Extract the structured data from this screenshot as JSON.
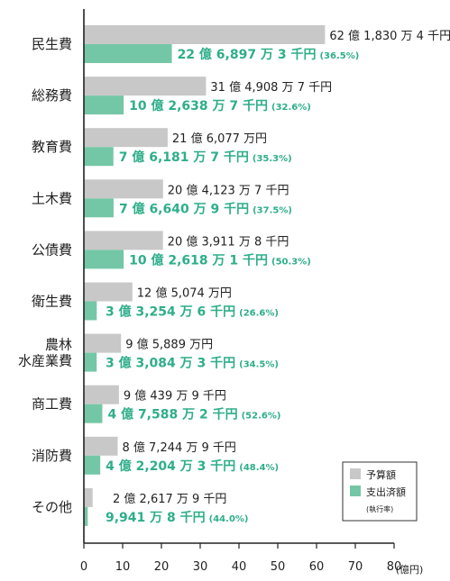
{
  "chart_data": {
    "type": "bar",
    "orientation": "horizontal",
    "x_unit": "(億円)",
    "xlim": [
      0,
      80
    ],
    "x_ticks": [
      0,
      10,
      20,
      30,
      40,
      50,
      60,
      70,
      80
    ],
    "legend": {
      "position": "bottom-right",
      "items": [
        {
          "label": "予算額",
          "color": "#c8c8c8"
        },
        {
          "label": "支出済額",
          "color": "#74c7a6",
          "note": "(執行率)"
        }
      ]
    },
    "colors": {
      "budget": "#c8c8c8",
      "spent": "#74c7a6",
      "label_accent": "#2eae8a"
    },
    "categories": [
      {
        "name": [
          "民生費"
        ],
        "budget": 62.183,
        "spent": 22.6897,
        "budget_label": "62 億 1,830 万 4 千円",
        "spent_label": "22 億 6,897 万 3 千円",
        "rate": "(36.5%)"
      },
      {
        "name": [
          "総務費"
        ],
        "budget": 31.4908,
        "spent": 10.2638,
        "budget_label": "31 億 4,908 万 7 千円",
        "spent_label": "10 億 2,638 万 7 千円",
        "rate": "(32.6%)"
      },
      {
        "name": [
          "教育費"
        ],
        "budget": 21.6077,
        "spent": 7.6181,
        "budget_label": "21 億 6,077 万円",
        "spent_label": "7 億 6,181 万 7 千円",
        "rate": "(35.3%)"
      },
      {
        "name": [
          "土木費"
        ],
        "budget": 20.4123,
        "spent": 7.664,
        "budget_label": "20 億 4,123 万 7 千円",
        "spent_label": "7 億 6,640 万 9 千円",
        "rate": "(37.5%)"
      },
      {
        "name": [
          "公債費"
        ],
        "budget": 20.3911,
        "spent": 10.2618,
        "budget_label": "20 億 3,911 万 8 千円",
        "spent_label": "10 億 2,618 万 1 千円",
        "rate": "(50.3%)"
      },
      {
        "name": [
          "衛生費"
        ],
        "budget": 12.5074,
        "spent": 3.3254,
        "budget_label": "12 億 5,074 万円",
        "spent_label": "3 億 3,254 万 6 千円",
        "rate": "(26.6%)"
      },
      {
        "name": [
          "農林",
          "水産業費"
        ],
        "budget": 9.5889,
        "spent": 3.3084,
        "budget_label": "9 億 5,889 万円",
        "spent_label": "3 億 3,084 万 3 千円",
        "rate": "(34.5%)"
      },
      {
        "name": [
          "商工費"
        ],
        "budget": 9.0439,
        "spent": 4.7588,
        "budget_label": "9 億 439 万 9 千円",
        "spent_label": "4 億 7,588 万 2 千円",
        "rate": "(52.6%)"
      },
      {
        "name": [
          "消防費"
        ],
        "budget": 8.7244,
        "spent": 4.2204,
        "budget_label": "8 億 7,244 万 9 千円",
        "spent_label": "4 億 2,204 万 3 千円",
        "rate": "(48.4%)"
      },
      {
        "name": [
          "その他"
        ],
        "budget": 2.2617,
        "spent": 0.9941,
        "budget_label": "2 億 2,617 万 9 千円",
        "spent_label": "9,941 万 8 千円",
        "rate": "(44.0%)"
      }
    ]
  }
}
